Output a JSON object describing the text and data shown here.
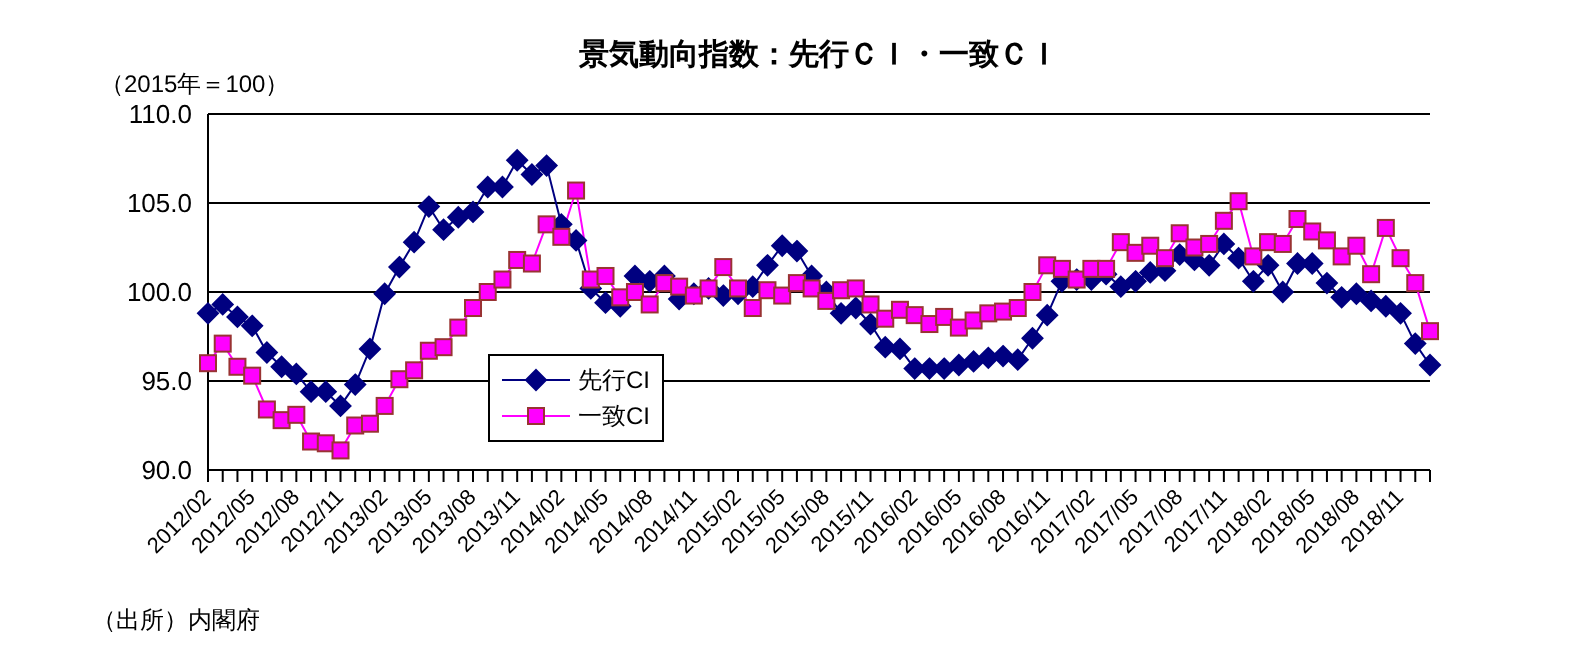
{
  "chart_data": {
    "type": "line",
    "title": "景気動向指数：先行ＣＩ・一致ＣＩ",
    "annotations": [
      "（2015年＝100）",
      "（出所）内閣府"
    ],
    "categories": [
      "2012/02",
      null,
      null,
      "2012/05",
      null,
      null,
      "2012/08",
      null,
      null,
      "2012/11",
      null,
      null,
      "2013/02",
      null,
      null,
      "2013/05",
      null,
      null,
      "2013/08",
      null,
      null,
      "2013/11",
      null,
      null,
      "2014/02",
      null,
      null,
      "2014/05",
      null,
      null,
      "2014/08",
      null,
      null,
      "2014/11",
      null,
      null,
      "2015/02",
      null,
      null,
      "2015/05",
      null,
      null,
      "2015/08",
      null,
      null,
      "2015/11",
      null,
      null,
      "2016/02",
      null,
      null,
      "2016/05",
      null,
      null,
      "2016/08",
      null,
      null,
      "2016/11",
      null,
      null,
      "2017/02",
      null,
      null,
      "2017/05",
      null,
      null,
      "2017/08",
      null,
      null,
      "2017/11",
      null,
      null,
      "2018/02",
      null,
      null,
      "2018/05",
      null,
      null,
      "2018/08",
      null,
      null,
      "2018/11",
      null,
      null
    ],
    "series": [
      {
        "name": "先行CI",
        "color": "#000080",
        "marker": "diamond",
        "values": [
          98.8,
          99.3,
          98.6,
          98.1,
          96.6,
          95.8,
          95.4,
          94.4,
          94.4,
          93.6,
          94.8,
          96.8,
          99.9,
          101.4,
          102.8,
          104.8,
          103.5,
          104.2,
          104.5,
          105.9,
          105.9,
          107.4,
          106.6,
          107.1,
          103.8,
          102.9,
          100.2,
          99.4,
          99.2,
          100.9,
          100.6,
          100.9,
          99.6,
          99.9,
          100.2,
          99.8,
          99.9,
          100.3,
          101.5,
          102.6,
          102.3,
          100.9,
          100.0,
          98.8,
          99.1,
          98.2,
          96.9,
          96.8,
          95.7,
          95.7,
          95.7,
          95.9,
          96.1,
          96.3,
          96.4,
          96.2,
          97.4,
          98.7,
          100.6,
          100.7,
          100.7,
          101.0,
          100.3,
          100.6,
          101.1,
          101.2,
          102.1,
          101.8,
          101.5,
          102.7,
          101.9,
          100.6,
          101.5,
          100.0,
          101.6,
          101.6,
          100.5,
          99.7,
          99.9,
          99.5,
          99.2,
          98.8,
          97.1,
          95.9
        ]
      },
      {
        "name": "一致CI",
        "color": "#ff00ff",
        "marker": "square",
        "values": [
          96.0,
          97.1,
          95.8,
          95.3,
          93.4,
          92.8,
          93.1,
          91.6,
          91.5,
          91.1,
          92.5,
          92.6,
          93.6,
          95.1,
          95.6,
          96.7,
          96.9,
          98.0,
          99.1,
          100.0,
          100.7,
          101.8,
          101.6,
          103.8,
          103.1,
          105.7,
          100.7,
          100.9,
          99.7,
          100.0,
          99.3,
          100.5,
          100.3,
          99.8,
          100.2,
          101.4,
          100.2,
          99.1,
          100.1,
          99.8,
          100.5,
          100.2,
          99.5,
          100.1,
          100.2,
          99.3,
          98.5,
          99.0,
          98.7,
          98.2,
          98.6,
          98.0,
          98.4,
          98.8,
          98.9,
          99.1,
          100.0,
          101.5,
          101.3,
          100.7,
          101.3,
          101.3,
          102.8,
          102.2,
          102.6,
          101.9,
          103.3,
          102.5,
          102.7,
          104.0,
          105.1,
          102.0,
          102.8,
          102.7,
          104.1,
          103.4,
          102.9,
          102.0,
          102.6,
          101.0,
          103.6,
          101.9,
          100.5,
          97.8
        ]
      }
    ],
    "ylim": [
      90,
      110
    ],
    "yticks": [
      {
        "value": 90,
        "label": "90.0"
      },
      {
        "value": 95,
        "label": "95.0"
      },
      {
        "value": 100,
        "label": "100.0"
      },
      {
        "value": 105,
        "label": "105.0"
      },
      {
        "value": 110,
        "label": "110.0"
      }
    ],
    "grid": "y",
    "legend": "bottom left",
    "line_style": "solid"
  }
}
